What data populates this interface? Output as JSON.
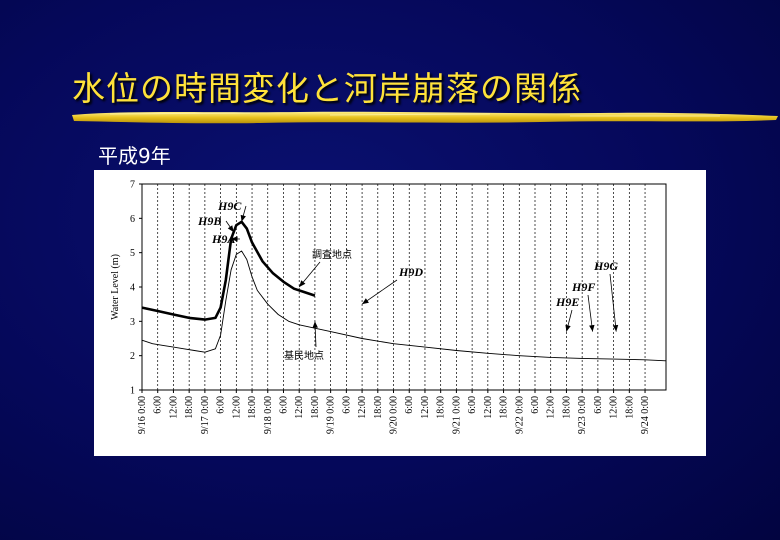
{
  "slide": {
    "title": "水位の時間変化と河岸崩落の関係",
    "subtitle": "平成9年"
  },
  "colors": {
    "title": "#ffe23a",
    "underline": "#e8c21e",
    "background": "#05085a"
  },
  "chart_data": {
    "type": "line",
    "ylabel": "Water Level (m)",
    "ylim": [
      1,
      7
    ],
    "yticks": [
      1,
      2,
      3,
      4,
      5,
      6,
      7
    ],
    "xlim": [
      0,
      200
    ],
    "x_unit_note": "hours from 9/16 0:00",
    "xtick_labels": [
      "9/16 0:00",
      "6:00",
      "12:00",
      "18:00",
      "9/17 0:00",
      "6:00",
      "12:00",
      "18:00",
      "9/18 0:00",
      "6:00",
      "12:00",
      "18:00",
      "9/19 0:00",
      "6:00",
      "12:00",
      "18:00",
      "9/20 0:00",
      "6:00",
      "12:00",
      "18:00",
      "9/21 0:00",
      "6:00",
      "12:00",
      "18:00",
      "9/22 0:00",
      "6:00",
      "12:00",
      "18:00",
      "9/23 0:00",
      "6:00",
      "12:00",
      "18:00",
      "9/24 0:00"
    ],
    "grid": "vertical dashed",
    "series": [
      {
        "name": "調査地点",
        "style": "thick",
        "x": [
          0,
          6,
          12,
          18,
          24,
          28,
          30,
          32,
          34,
          36,
          38,
          40,
          42,
          46,
          50,
          54,
          58,
          62,
          66
        ],
        "y": [
          3.4,
          3.3,
          3.2,
          3.1,
          3.05,
          3.1,
          3.4,
          4.2,
          5.4,
          5.8,
          5.9,
          5.7,
          5.3,
          4.75,
          4.4,
          4.15,
          3.95,
          3.85,
          3.75
        ]
      },
      {
        "name": "基民地点",
        "style": "thin",
        "x": [
          0,
          4,
          8,
          12,
          16,
          20,
          24,
          28,
          30,
          32,
          34,
          36,
          38,
          40,
          42,
          44,
          48,
          52,
          56,
          60,
          66,
          72,
          84,
          96,
          108,
          120,
          132,
          144,
          156,
          168,
          180,
          192,
          200
        ],
        "y": [
          2.45,
          2.35,
          2.3,
          2.25,
          2.2,
          2.15,
          2.1,
          2.2,
          2.6,
          3.6,
          4.5,
          4.95,
          5.05,
          4.8,
          4.3,
          3.9,
          3.5,
          3.2,
          3.0,
          2.9,
          2.8,
          2.7,
          2.5,
          2.35,
          2.25,
          2.15,
          2.07,
          2.0,
          1.95,
          1.92,
          1.9,
          1.88,
          1.85
        ]
      }
    ],
    "annotations": [
      {
        "text": "H9C",
        "target": [
          38,
          5.9
        ]
      },
      {
        "text": "H9B",
        "target": [
          35,
          5.6
        ]
      },
      {
        "text": "H9A",
        "target": [
          34,
          5.4
        ]
      },
      {
        "text": "H9D",
        "target": [
          84,
          3.5
        ]
      },
      {
        "text": "H9G",
        "target": [
          181,
          2.7
        ]
      },
      {
        "text": "H9F",
        "target": [
          172,
          2.7
        ]
      },
      {
        "text": "H9E",
        "target": [
          162,
          2.7
        ]
      },
      {
        "text": "調査地点",
        "target": [
          60,
          4.0
        ]
      },
      {
        "text": "基民地点",
        "target": [
          66,
          3.0
        ]
      }
    ]
  }
}
